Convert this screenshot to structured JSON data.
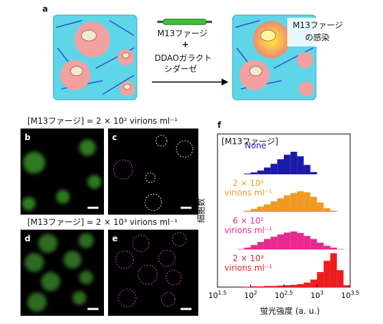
{
  "figure": {
    "panel_a": {
      "label": "a",
      "reagent_1": "M13ファージ",
      "plus": "+",
      "reagent_2_lines": [
        "DDAOガラクト",
        "シダーゼ"
      ],
      "result_lines": [
        "M13ファージ",
        "の感染"
      ]
    },
    "condition_1": "[M13ファージ] = 2 × 10² virions ml⁻¹",
    "condition_2": "[M13ファージ] = 2 × 10³ virions ml⁻¹",
    "panel_labels": [
      "b",
      "c",
      "d",
      "e"
    ]
  },
  "chart_data": {
    "type": "histogram",
    "label": "f",
    "legend_title": "[M13ファージ]",
    "xlabel": "蛍光強度 (a. u.)",
    "ylabel": "細胞数",
    "xscale": "log",
    "xlim": [
      31.6,
      3162.3
    ],
    "xticks": [
      {
        "value": 31.6,
        "label": "10",
        "exponent": "1.5"
      },
      {
        "value": 100,
        "label": "10",
        "exponent": "2"
      },
      {
        "value": 316.2,
        "label": "10",
        "exponent": "2.5"
      },
      {
        "value": 1000,
        "label": "10",
        "exponent": "3"
      },
      {
        "value": 3162.3,
        "label": "10",
        "exponent": "3.5"
      }
    ],
    "bins": [
      31.6,
      39.8,
      50.1,
      63.1,
      79.4,
      100,
      125.9,
      158.5,
      199.5,
      251.2,
      316.2,
      398.1,
      501.2,
      631.0,
      794.3,
      1000,
      1258.9,
      1584.9,
      1995.3,
      2511.9,
      3162.3
    ],
    "series": [
      {
        "name": "None",
        "color": "#1a1aa8",
        "values": [
          0,
          0,
          0,
          0,
          2,
          5,
          10,
          18,
          28,
          40,
          52,
          60,
          48,
          25,
          6,
          0,
          0,
          0,
          0,
          0
        ]
      },
      {
        "name": "2 × 10²\nvirions ml⁻¹",
        "color": "#f09a22",
        "values": [
          0,
          0,
          0,
          0,
          3,
          8,
          14,
          20,
          28,
          36,
          44,
          50,
          55,
          52,
          40,
          25,
          10,
          3,
          0,
          0
        ]
      },
      {
        "name": "6 × 10²\nvirions ml⁻¹",
        "color": "#e8298f",
        "values": [
          0,
          0,
          0,
          1,
          5,
          12,
          20,
          28,
          34,
          40,
          45,
          48,
          44,
          36,
          28,
          18,
          10,
          5,
          1,
          0
        ]
      },
      {
        "name": "2 × 10³\nvirions ml⁻¹",
        "color": "#ee1c1c",
        "values": [
          0,
          0,
          0,
          0,
          1,
          2,
          2,
          3,
          3,
          4,
          5,
          6,
          8,
          12,
          20,
          40,
          70,
          90,
          45,
          5
        ]
      }
    ]
  }
}
